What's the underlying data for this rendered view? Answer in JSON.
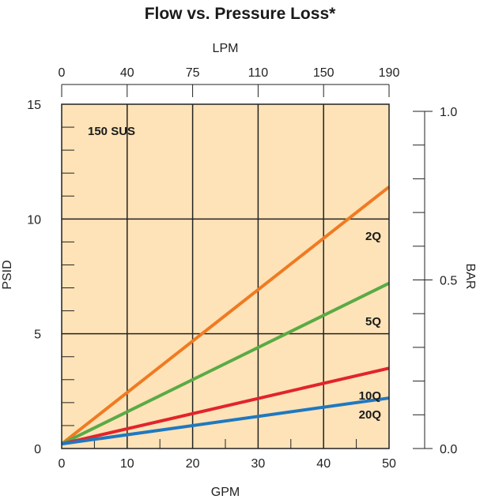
{
  "chart_data": {
    "type": "line",
    "title": "Flow vs. Pressure Loss*",
    "annotation": "150 SUS",
    "bottom_axis": {
      "label": "GPM",
      "range": [
        0,
        50
      ],
      "ticks": [
        "0",
        "10",
        "20",
        "30",
        "40",
        "50"
      ]
    },
    "top_axis": {
      "label": "LPM",
      "ticks": [
        "0",
        "40",
        "75",
        "110",
        "150",
        "190"
      ]
    },
    "left_axis": {
      "label": "PSID",
      "range": [
        0,
        15
      ],
      "ticks": [
        "0",
        "5",
        "10",
        "15"
      ]
    },
    "right_axis": {
      "label": "BAR",
      "range": [
        0.0,
        1.0
      ],
      "ticks": [
        "0.0",
        "0.5",
        "1.0"
      ]
    },
    "grid": true,
    "background_color": "#fde3b7",
    "series": [
      {
        "name": "2Q",
        "color": "#f07a22",
        "x": [
          0,
          50
        ],
        "y": [
          0.2,
          11.4
        ]
      },
      {
        "name": "5Q",
        "color": "#5aaa46",
        "x": [
          0,
          50
        ],
        "y": [
          0.2,
          7.2
        ]
      },
      {
        "name": "10Q",
        "color": "#e2242b",
        "x": [
          0,
          50
        ],
        "y": [
          0.2,
          3.5
        ]
      },
      {
        "name": "20Q",
        "color": "#1f78c1",
        "x": [
          0,
          50
        ],
        "y": [
          0.2,
          2.2
        ]
      }
    ]
  }
}
